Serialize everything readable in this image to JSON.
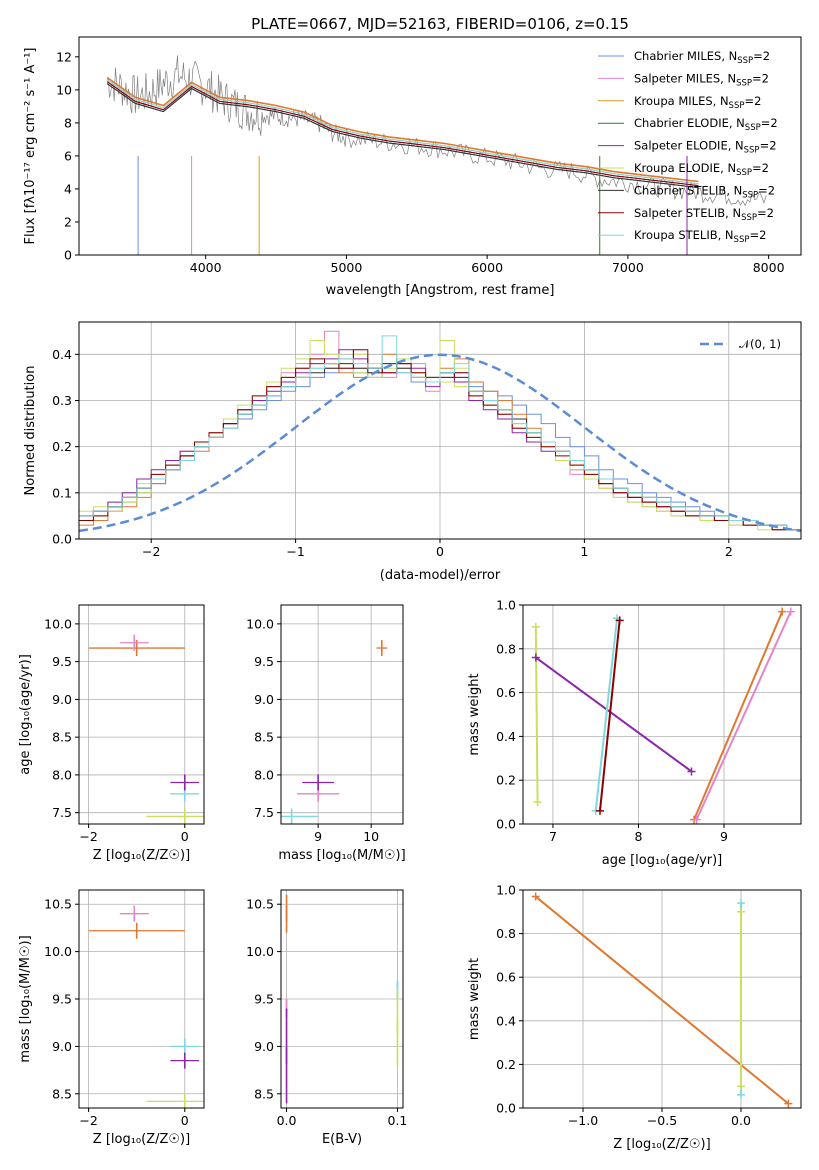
{
  "figure": {
    "title": "PLATE=0667, MJD=52163, FIBERID=0106, z=0.15"
  },
  "model_names": [
    "Chabrier MILES, N_SSP=2",
    "Salpeter MILES, N_SSP=2",
    "Kroupa MILES, N_SSP=2",
    "Chabrier ELODIE, N_SSP=2",
    "Salpeter ELODIE, N_SSP=2",
    "Kroupa ELODIE, N_SSP=2",
    "Chabrier STELIB, N_SSP=2",
    "Salpeter STELIB, N_SSP=2",
    "Kroupa STELIB, N_SSP=2"
  ],
  "colors": {
    "data": "#808080",
    "models": [
      "#6a8fe0",
      "#e684c8",
      "#d89a20",
      "#2e7d32",
      "#8e24aa",
      "#c8e060",
      "#333333",
      "#8b0000",
      "#7fd8e0"
    ],
    "accent_orange": "#e07830",
    "gaussian": "#5b8bd6",
    "grid": "#b0b0b0"
  },
  "chart_data": [
    {
      "id": "spectrum",
      "type": "line",
      "xlabel": "wavelength [Angstrom, rest frame]",
      "ylabel": "Flux [fλ10⁻¹⁷ erg cm⁻² s⁻¹ A⁻¹]",
      "xlim": [
        3100,
        8230
      ],
      "ylim": [
        0,
        13.2
      ],
      "xticks": [
        4000,
        5000,
        6000,
        7000,
        8000
      ],
      "yticks": [
        0,
        2,
        4,
        6,
        8,
        10,
        12
      ],
      "grid": false,
      "legend": "right",
      "data_series": {
        "name": "data",
        "x": [
          3300,
          3400,
          3500,
          3600,
          3700,
          3800,
          3900,
          4000,
          4100,
          4200,
          4300,
          4400,
          4500,
          4600,
          4700,
          4800,
          4900,
          5000,
          5200,
          5400,
          5600,
          5800,
          6000,
          6200,
          6400,
          6600,
          6800,
          7000,
          7200,
          7400,
          7600,
          7800,
          8000
        ],
        "y": [
          10.6,
          10.2,
          9.6,
          9.8,
          10.4,
          10.9,
          10.6,
          10.2,
          9.6,
          9.1,
          8.7,
          8.5,
          8.4,
          8.3,
          8.2,
          8.0,
          7.4,
          7.1,
          6.9,
          6.7,
          6.5,
          6.2,
          5.9,
          5.6,
          5.2,
          5.1,
          4.6,
          4.4,
          4.1,
          3.9,
          3.7,
          3.5,
          3.3
        ]
      },
      "model_series": {
        "x": [
          3300,
          3500,
          3700,
          3900,
          4100,
          4300,
          4500,
          4700,
          4900,
          5100,
          5300,
          5500,
          5700,
          5900,
          6100,
          6300,
          6500,
          6700,
          6900,
          7100,
          7300,
          7500
        ],
        "y": [
          10.5,
          9.3,
          8.8,
          10.2,
          9.3,
          9.1,
          8.8,
          8.4,
          7.6,
          7.2,
          6.9,
          6.7,
          6.5,
          6.2,
          5.9,
          5.6,
          5.3,
          5.1,
          4.8,
          4.6,
          4.4,
          4.2
        ]
      }
    },
    {
      "id": "residual-histogram",
      "type": "line",
      "xlabel": "(data-model)/error",
      "ylabel": "Normed distribution",
      "xlim": [
        -2.5,
        2.5
      ],
      "ylim": [
        0,
        0.47
      ],
      "xticks": [
        -2,
        -1,
        0,
        1,
        2
      ],
      "yticks": [
        0.0,
        0.1,
        0.2,
        0.3,
        0.4
      ],
      "grid": true,
      "legend": "top-right",
      "gaussian_label": "𝒩(0, 1)",
      "bin_width": 0.1,
      "bin_start": -2.5,
      "series": [
        {
          "values": [
            0.05,
            0.06,
            0.07,
            0.08,
            0.1,
            0.12,
            0.15,
            0.18,
            0.2,
            0.22,
            0.24,
            0.26,
            0.28,
            0.3,
            0.32,
            0.33,
            0.35,
            0.36,
            0.37,
            0.36,
            0.35,
            0.38,
            0.36,
            0.34,
            0.34,
            0.35,
            0.36,
            0.33,
            0.32,
            0.31,
            0.29,
            0.27,
            0.25,
            0.22,
            0.2,
            0.18,
            0.15,
            0.13,
            0.12,
            0.1,
            0.09,
            0.08,
            0.07,
            0.06,
            0.05,
            0.04,
            0.04,
            0.03,
            0.03,
            0.02
          ]
        },
        {
          "values": [
            0.04,
            0.05,
            0.06,
            0.09,
            0.11,
            0.14,
            0.16,
            0.19,
            0.21,
            0.23,
            0.26,
            0.28,
            0.3,
            0.33,
            0.36,
            0.38,
            0.4,
            0.45,
            0.39,
            0.37,
            0.36,
            0.35,
            0.37,
            0.38,
            0.32,
            0.34,
            0.35,
            0.31,
            0.29,
            0.27,
            0.24,
            0.21,
            0.2,
            0.17,
            0.14,
            0.13,
            0.11,
            0.09,
            0.08,
            0.07,
            0.06,
            0.05,
            0.05,
            0.04,
            0.04,
            0.03,
            0.03,
            0.03,
            0.02,
            0.02
          ]
        },
        {
          "values": [
            0.03,
            0.04,
            0.06,
            0.07,
            0.09,
            0.12,
            0.15,
            0.17,
            0.19,
            0.22,
            0.25,
            0.27,
            0.3,
            0.33,
            0.35,
            0.37,
            0.38,
            0.37,
            0.36,
            0.35,
            0.37,
            0.4,
            0.38,
            0.36,
            0.35,
            0.37,
            0.39,
            0.34,
            0.32,
            0.3,
            0.27,
            0.24,
            0.21,
            0.19,
            0.16,
            0.14,
            0.12,
            0.1,
            0.09,
            0.08,
            0.07,
            0.06,
            0.05,
            0.05,
            0.04,
            0.04,
            0.03,
            0.03,
            0.02,
            0.02
          ]
        },
        {
          "values": [
            0.06,
            0.07,
            0.08,
            0.1,
            0.12,
            0.14,
            0.16,
            0.18,
            0.2,
            0.22,
            0.24,
            0.27,
            0.29,
            0.31,
            0.33,
            0.35,
            0.37,
            0.38,
            0.39,
            0.4,
            0.38,
            0.37,
            0.39,
            0.36,
            0.35,
            0.34,
            0.33,
            0.31,
            0.29,
            0.27,
            0.25,
            0.23,
            0.21,
            0.19,
            0.17,
            0.15,
            0.13,
            0.11,
            0.1,
            0.09,
            0.08,
            0.07,
            0.06,
            0.05,
            0.05,
            0.04,
            0.04,
            0.03,
            0.03,
            0.02
          ]
        },
        {
          "values": [
            0.05,
            0.06,
            0.08,
            0.1,
            0.13,
            0.15,
            0.17,
            0.19,
            0.21,
            0.23,
            0.25,
            0.28,
            0.3,
            0.32,
            0.34,
            0.36,
            0.38,
            0.39,
            0.41,
            0.39,
            0.37,
            0.36,
            0.38,
            0.37,
            0.33,
            0.36,
            0.34,
            0.3,
            0.28,
            0.26,
            0.23,
            0.21,
            0.19,
            0.17,
            0.15,
            0.13,
            0.12,
            0.1,
            0.09,
            0.08,
            0.07,
            0.06,
            0.05,
            0.05,
            0.04,
            0.04,
            0.03,
            0.03,
            0.02,
            0.02
          ]
        },
        {
          "values": [
            0.04,
            0.05,
            0.06,
            0.08,
            0.1,
            0.13,
            0.16,
            0.18,
            0.2,
            0.23,
            0.26,
            0.29,
            0.31,
            0.34,
            0.37,
            0.39,
            0.43,
            0.4,
            0.38,
            0.36,
            0.35,
            0.38,
            0.37,
            0.35,
            0.34,
            0.43,
            0.37,
            0.32,
            0.3,
            0.28,
            0.25,
            0.22,
            0.2,
            0.17,
            0.15,
            0.13,
            0.11,
            0.09,
            0.08,
            0.07,
            0.06,
            0.05,
            0.05,
            0.04,
            0.04,
            0.03,
            0.03,
            0.02,
            0.02,
            0.02
          ]
        },
        {
          "values": [
            0.05,
            0.06,
            0.07,
            0.09,
            0.11,
            0.13,
            0.15,
            0.18,
            0.2,
            0.22,
            0.25,
            0.27,
            0.29,
            0.31,
            0.33,
            0.35,
            0.36,
            0.37,
            0.38,
            0.37,
            0.36,
            0.38,
            0.37,
            0.35,
            0.35,
            0.36,
            0.35,
            0.32,
            0.3,
            0.28,
            0.26,
            0.23,
            0.21,
            0.19,
            0.17,
            0.15,
            0.13,
            0.11,
            0.1,
            0.09,
            0.08,
            0.07,
            0.06,
            0.05,
            0.05,
            0.04,
            0.04,
            0.03,
            0.03,
            0.02
          ]
        },
        {
          "values": [
            0.04,
            0.05,
            0.07,
            0.09,
            0.11,
            0.14,
            0.16,
            0.18,
            0.21,
            0.23,
            0.25,
            0.28,
            0.31,
            0.33,
            0.35,
            0.37,
            0.39,
            0.38,
            0.37,
            0.41,
            0.37,
            0.36,
            0.38,
            0.36,
            0.34,
            0.35,
            0.36,
            0.31,
            0.29,
            0.27,
            0.24,
            0.22,
            0.2,
            0.18,
            0.16,
            0.14,
            0.12,
            0.1,
            0.09,
            0.08,
            0.07,
            0.06,
            0.05,
            0.05,
            0.04,
            0.04,
            0.03,
            0.03,
            0.02,
            0.02
          ]
        },
        {
          "values": [
            0.05,
            0.06,
            0.07,
            0.09,
            0.11,
            0.13,
            0.15,
            0.17,
            0.2,
            0.22,
            0.24,
            0.27,
            0.29,
            0.31,
            0.33,
            0.35,
            0.37,
            0.38,
            0.39,
            0.38,
            0.37,
            0.44,
            0.36,
            0.35,
            0.34,
            0.36,
            0.38,
            0.32,
            0.3,
            0.28,
            0.25,
            0.23,
            0.21,
            0.19,
            0.17,
            0.15,
            0.13,
            0.11,
            0.1,
            0.09,
            0.08,
            0.07,
            0.06,
            0.05,
            0.05,
            0.04,
            0.04,
            0.03,
            0.03,
            0.02
          ]
        }
      ]
    },
    {
      "id": "age-vs-Z",
      "type": "scatter",
      "xlabel": "Z [log₁₀(Z/Z☉)]",
      "ylabel": "age  [log₁₀(age/yr)]",
      "xlim": [
        -2.2,
        0.4
      ],
      "ylim": [
        7.35,
        10.25
      ],
      "xticks": [
        -2,
        0
      ],
      "yticks": [
        7.5,
        8.0,
        8.5,
        9.0,
        9.5,
        10.0
      ],
      "grid": true,
      "points": [
        {
          "x": -1.0,
          "y": 9.68,
          "xerr": 1.0
        },
        {
          "x": -1.05,
          "y": 9.75,
          "xerr": 0.3
        },
        {
          "x": 0.0,
          "y": 7.75,
          "xerr": 0.3
        },
        {
          "x": 0.0,
          "y": 7.9,
          "xerr": 0.3
        },
        {
          "x": 0.0,
          "y": 7.45,
          "xerr": 0.8
        }
      ]
    },
    {
      "id": "age-vs-mass",
      "type": "scatter",
      "xlabel": "mass [log₁₀(M/M☉)]",
      "ylabel": "",
      "xlim": [
        8.3,
        10.6
      ],
      "ylim": [
        7.35,
        10.25
      ],
      "xticks": [
        9,
        10
      ],
      "yticks": [
        7.5,
        8.0,
        8.5,
        9.0,
        9.5,
        10.0
      ],
      "grid": true,
      "points": [
        {
          "x": 10.2,
          "y": 9.68,
          "xerr": 0.1
        },
        {
          "x": 9.0,
          "y": 7.75,
          "xerr": 0.4
        },
        {
          "x": 8.5,
          "y": 7.45,
          "xerr": 0.5
        },
        {
          "x": 9.0,
          "y": 7.9,
          "xerr": 0.3
        }
      ]
    },
    {
      "id": "weight-vs-age",
      "type": "line",
      "xlabel": "age  [log₁₀(age/yr)]",
      "ylabel": "mass weight",
      "xlim": [
        6.65,
        9.9
      ],
      "ylim": [
        0,
        1.0
      ],
      "xticks": [
        7,
        8,
        9
      ],
      "yticks": [
        0.0,
        0.2,
        0.4,
        0.6,
        0.8,
        1.0
      ],
      "grid": true,
      "segments": [
        {
          "x": [
            6.8,
            6.82
          ],
          "y": [
            0.9,
            0.1
          ]
        },
        {
          "x": [
            6.8,
            8.62
          ],
          "y": [
            0.76,
            0.24
          ]
        },
        {
          "x": [
            7.5,
            7.75
          ],
          "y": [
            0.06,
            0.94
          ]
        },
        {
          "x": [
            7.55,
            7.78
          ],
          "y": [
            0.06,
            0.93
          ]
        },
        {
          "x": [
            8.65,
            9.68
          ],
          "y": [
            0.02,
            0.97
          ]
        },
        {
          "x": [
            8.68,
            9.78
          ],
          "y": [
            0.02,
            0.97
          ]
        }
      ]
    },
    {
      "id": "mass-vs-Z",
      "type": "scatter",
      "xlabel": "Z [log₁₀(Z/Z☉)]",
      "ylabel": "mass [log₁₀(M/M☉)]",
      "xlim": [
        -2.2,
        0.4
      ],
      "ylim": [
        8.35,
        10.65
      ],
      "xticks": [
        -2,
        0
      ],
      "yticks": [
        8.5,
        9.0,
        9.5,
        10.0,
        10.5
      ],
      "grid": true,
      "points": [
        {
          "x": -1.0,
          "y": 10.22,
          "xerr": 1.0
        },
        {
          "x": -1.05,
          "y": 10.4,
          "xerr": 0.3
        },
        {
          "x": 0.0,
          "y": 9.0,
          "xerr": 0.3
        },
        {
          "x": 0.0,
          "y": 8.85,
          "xerr": 0.3
        },
        {
          "x": 0.0,
          "y": 8.42,
          "xerr": 0.8
        }
      ]
    },
    {
      "id": "mass-vs-EBV",
      "type": "scatter",
      "xlabel": "E(B-V)",
      "ylabel": "",
      "xlim": [
        -0.005,
        0.105
      ],
      "ylim": [
        8.35,
        10.65
      ],
      "xticks": [
        0.0,
        0.1
      ],
      "yticks": [
        8.5,
        9.0,
        9.5,
        10.0,
        10.5
      ],
      "grid": true,
      "points": [
        {
          "x": 0.0,
          "y": 10.4,
          "yerr": 0.2
        },
        {
          "x": 0.0,
          "y": 9.4,
          "yerr": 0.1
        },
        {
          "x": 0.1,
          "y": 9.6,
          "yerr": 0.1
        },
        {
          "x": 0.0,
          "y": 8.9,
          "yerr": 0.5
        },
        {
          "x": 0.1,
          "y": 9.2,
          "yerr": 0.4
        }
      ]
    },
    {
      "id": "weight-vs-Z",
      "type": "line",
      "xlabel": "Z [log₁₀(Z/Z☉)]",
      "ylabel": "mass weight",
      "xlim": [
        -1.38,
        0.38
      ],
      "ylim": [
        0,
        1.0
      ],
      "xticks": [
        -1.0,
        -0.5,
        0.0
      ],
      "yticks": [
        0.0,
        0.2,
        0.4,
        0.6,
        0.8,
        1.0
      ],
      "grid": true,
      "segments": [
        {
          "x": [
            -1.3,
            0.3
          ],
          "y": [
            0.97,
            0.02
          ]
        },
        {
          "x": [
            0.0,
            0.0
          ],
          "y": [
            0.94,
            0.06
          ]
        },
        {
          "x": [
            0.0,
            0.0
          ],
          "y": [
            0.9,
            0.1
          ]
        }
      ]
    }
  ]
}
